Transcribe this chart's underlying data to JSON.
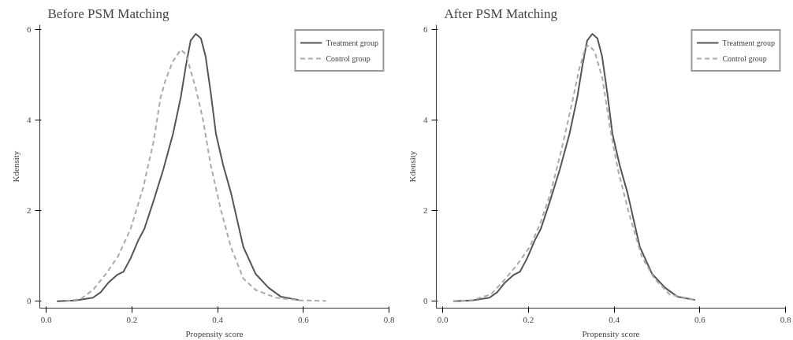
{
  "chart_data": [
    {
      "type": "line",
      "title": "Before PSM Matching",
      "xlabel": "Propensity score",
      "ylabel": "Kdensity",
      "xlim": [
        -0.015,
        0.8
      ],
      "ylim": [
        -0.15,
        6.1
      ],
      "xticks": [
        {
          "value": 0,
          "label": "0.0"
        },
        {
          "value": 0.2,
          "label": "0.2"
        },
        {
          "value": 0.4,
          "label": "0.4"
        },
        {
          "value": 0.6,
          "label": "0.6"
        },
        {
          "value": 0.8,
          "label": "0.8"
        }
      ],
      "yticks": [
        0,
        2,
        4,
        6
      ],
      "grid": false,
      "legend": "top right",
      "series": [
        {
          "name": "Treatment group",
          "color": "#555555",
          "line_style": "solid",
          "x": [
            0.025,
            0.068,
            0.109,
            0.127,
            0.144,
            0.165,
            0.18,
            0.197,
            0.215,
            0.229,
            0.25,
            0.273,
            0.296,
            0.314,
            0.326,
            0.337,
            0.349,
            0.361,
            0.372,
            0.384,
            0.396,
            0.413,
            0.431,
            0.46,
            0.489,
            0.519,
            0.548,
            0.589
          ],
          "values": [
            0,
            0.02,
            0.08,
            0.2,
            0.4,
            0.58,
            0.65,
            0.95,
            1.35,
            1.6,
            2.2,
            2.9,
            3.7,
            4.5,
            5.2,
            5.75,
            5.9,
            5.8,
            5.4,
            4.6,
            3.7,
            3.0,
            2.4,
            1.2,
            0.6,
            0.3,
            0.1,
            0.03
          ]
        },
        {
          "name": "Control group",
          "color": "#aaaaaa",
          "line_style": "dashed",
          "x": [
            0.045,
            0.08,
            0.109,
            0.139,
            0.168,
            0.197,
            0.226,
            0.25,
            0.267,
            0.279,
            0.296,
            0.314,
            0.326,
            0.349,
            0.366,
            0.384,
            0.408,
            0.431,
            0.46,
            0.489,
            0.536,
            0.595,
            0.653
          ],
          "values": [
            0,
            0.05,
            0.25,
            0.6,
            1.0,
            1.6,
            2.5,
            3.5,
            4.5,
            4.9,
            5.3,
            5.55,
            5.45,
            4.7,
            4.0,
            3.0,
            2.0,
            1.2,
            0.5,
            0.25,
            0.08,
            0.02,
            0.01
          ]
        }
      ]
    },
    {
      "type": "line",
      "title": "After PSM Matching",
      "xlabel": "Propensity score",
      "ylabel": "Kdensity",
      "xlim": [
        -0.015,
        0.8
      ],
      "ylim": [
        -0.15,
        6.1
      ],
      "xticks": [
        {
          "value": 0,
          "label": "0.0"
        },
        {
          "value": 0.2,
          "label": "0.2"
        },
        {
          "value": 0.4,
          "label": "0.4"
        },
        {
          "value": 0.6,
          "label": "0.6"
        },
        {
          "value": 0.8,
          "label": "0.8"
        }
      ],
      "yticks": [
        0,
        2,
        4,
        6
      ],
      "grid": false,
      "legend": "top right",
      "series": [
        {
          "name": "Treatment group",
          "color": "#555555",
          "line_style": "solid",
          "x": [
            0.025,
            0.068,
            0.109,
            0.127,
            0.144,
            0.165,
            0.18,
            0.197,
            0.215,
            0.229,
            0.25,
            0.273,
            0.296,
            0.314,
            0.326,
            0.337,
            0.349,
            0.361,
            0.372,
            0.384,
            0.396,
            0.413,
            0.431,
            0.46,
            0.489,
            0.519,
            0.548,
            0.589
          ],
          "values": [
            0,
            0.02,
            0.08,
            0.2,
            0.4,
            0.58,
            0.65,
            0.95,
            1.35,
            1.6,
            2.2,
            2.9,
            3.7,
            4.5,
            5.2,
            5.75,
            5.9,
            5.8,
            5.4,
            4.6,
            3.7,
            3.0,
            2.4,
            1.2,
            0.6,
            0.3,
            0.1,
            0.03
          ]
        },
        {
          "name": "Control group",
          "color": "#aaaaaa",
          "line_style": "dashed",
          "x": [
            0.024,
            0.07,
            0.112,
            0.142,
            0.173,
            0.203,
            0.227,
            0.252,
            0.276,
            0.3,
            0.318,
            0.333,
            0.342,
            0.355,
            0.373,
            0.391,
            0.409,
            0.433,
            0.464,
            0.494,
            0.53,
            0.591
          ],
          "values": [
            0,
            0.03,
            0.15,
            0.45,
            0.8,
            1.2,
            1.7,
            2.4,
            3.3,
            4.3,
            5.1,
            5.6,
            5.65,
            5.5,
            4.9,
            3.8,
            2.9,
            2.0,
            1.0,
            0.5,
            0.15,
            0.03
          ]
        }
      ]
    }
  ]
}
